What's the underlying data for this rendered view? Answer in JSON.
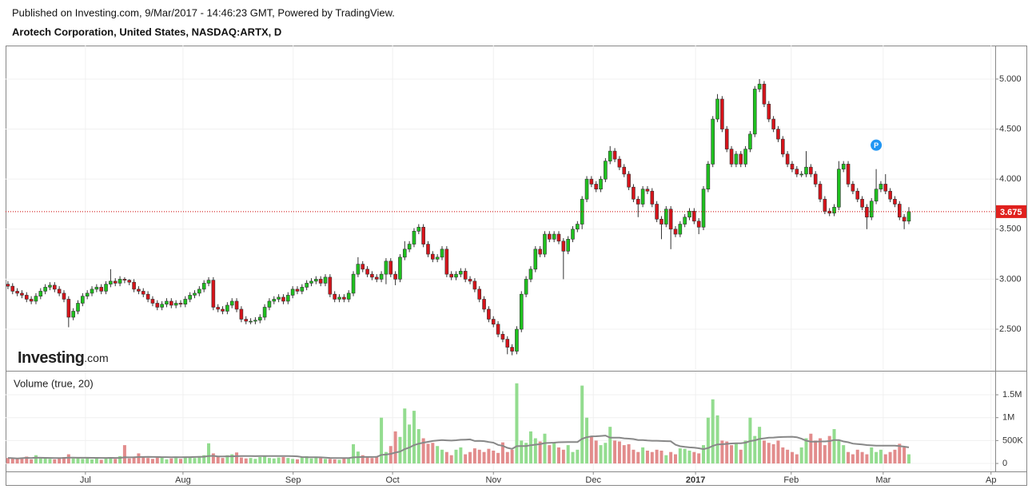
{
  "chart_data": {
    "type": "candlestick",
    "published": "Published on Investing.com, 9/Mar/2017 - 14:46:23 GMT, Powered by TradingView.",
    "title": "Arotech Corporation, United States, NASDAQ:ARTX, D",
    "logo": [
      "Investing",
      ".com"
    ],
    "volume_label": "Volume (true, 20)",
    "annotation": {
      "label": "P",
      "x": 186
    },
    "up_color": "#1fc11f",
    "down_color": "#d6141b",
    "volume_up_color": "#93dc8f",
    "volume_down_color": "#e28c8c",
    "xlim": [
      -0.5,
      211.5
    ],
    "xticks": [
      {
        "value": 16.6,
        "label": "Jul"
      },
      {
        "value": 37.5,
        "label": "Aug"
      },
      {
        "value": 61.1,
        "label": "Sep"
      },
      {
        "value": 82.4,
        "label": "Oct"
      },
      {
        "value": 104,
        "label": "Nov"
      },
      {
        "value": 125.4,
        "label": "Dec"
      },
      {
        "value": 147.3,
        "label": "2017"
      },
      {
        "value": 167.8,
        "label": "Feb"
      },
      {
        "value": 187.5,
        "label": "Mar"
      },
      {
        "value": 210.6,
        "label": "Ap"
      }
    ],
    "ylim": [
      2.093,
      5.335
    ],
    "yticks": [
      {
        "value": 2.5,
        "label": "2.500"
      },
      {
        "value": 3,
        "label": "3.000"
      },
      {
        "value": 3.5,
        "label": "3.500"
      },
      {
        "value": 4,
        "label": "4.000"
      },
      {
        "value": 4.5,
        "label": "4.500"
      },
      {
        "value": 5,
        "label": "5.000"
      }
    ],
    "volume_ylim": [
      -174000,
      2007000
    ],
    "volume_ticks": [
      0,
      {
        "value": 500000,
        "label": "500K"
      },
      {
        "value": 1000000,
        "label": "1M"
      },
      {
        "value": 1500000,
        "label": "1.5M"
      }
    ],
    "open": [
      2.95,
      2.93,
      2.88,
      2.86,
      2.84,
      2.8,
      2.78,
      2.83,
      2.88,
      2.92,
      2.94,
      2.9,
      2.86,
      2.8,
      2.62,
      2.68,
      2.76,
      2.83,
      2.86,
      2.9,
      2.92,
      2.88,
      2.95,
      2.98,
      2.96,
      3.0,
      2.99,
      2.97,
      2.9,
      2.88,
      2.85,
      2.8,
      2.76,
      2.72,
      2.75,
      2.78,
      2.74,
      2.76,
      2.75,
      2.8,
      2.84,
      2.86,
      2.9,
      2.96,
      2.99,
      2.72,
      2.7,
      2.68,
      2.74,
      2.78,
      2.7,
      2.6,
      2.58,
      2.58,
      2.59,
      2.62,
      2.72,
      2.78,
      2.8,
      2.82,
      2.78,
      2.84,
      2.9,
      2.88,
      2.92,
      2.96,
      2.98,
      3.0,
      2.96,
      3.02,
      2.85,
      2.8,
      2.82,
      2.8,
      2.86,
      3.05,
      3.15,
      3.1,
      3.05,
      3.02,
      3.0,
      3.05,
      3.18,
      3.05,
      3.0,
      3.22,
      3.3,
      3.35,
      3.48,
      3.52,
      3.35,
      3.25,
      3.2,
      3.22,
      3.3,
      3.05,
      3.02,
      3.05,
      3.08,
      3.0,
      2.98,
      2.9,
      2.8,
      2.7,
      2.6,
      2.55,
      2.45,
      2.4,
      2.32,
      2.28,
      2.5,
      2.85,
      3.0,
      3.1,
      3.3,
      3.25,
      3.45,
      3.4,
      3.45,
      3.38,
      3.28,
      3.4,
      3.5,
      3.55,
      3.8,
      4.0,
      3.95,
      3.9,
      4.0,
      4.18,
      4.28,
      4.2,
      4.12,
      4.05,
      3.92,
      3.8,
      3.75,
      3.9,
      3.88,
      3.75,
      3.6,
      3.55,
      3.7,
      3.5,
      3.45,
      3.55,
      3.62,
      3.68,
      3.58,
      3.52,
      3.9,
      4.15,
      4.6,
      4.8,
      4.5,
      4.3,
      4.15,
      4.25,
      4.15,
      4.3,
      4.45,
      4.9,
      4.95,
      4.75,
      4.6,
      4.5,
      4.4,
      4.25,
      4.15,
      4.1,
      4.05,
      4.05,
      4.12,
      4.05,
      3.95,
      3.8,
      3.68,
      3.66,
      3.72,
      4.1,
      4.15,
      3.95,
      3.88,
      3.8,
      3.72,
      3.62,
      3.78,
      3.9,
      3.95,
      3.88,
      3.8,
      3.75,
      3.62,
      3.58
    ],
    "high": [
      2.98,
      2.96,
      2.91,
      2.89,
      2.87,
      2.83,
      2.86,
      2.91,
      2.95,
      2.97,
      2.97,
      2.93,
      2.89,
      2.83,
      2.71,
      2.79,
      2.86,
      2.89,
      2.93,
      2.95,
      2.95,
      2.98,
      3.1,
      3.01,
      3.03,
      3.02,
      3.0,
      3.0,
      2.93,
      2.91,
      2.88,
      2.83,
      2.79,
      2.78,
      2.81,
      2.81,
      2.79,
      2.79,
      2.83,
      2.87,
      2.89,
      2.93,
      2.99,
      3.02,
      3.02,
      2.75,
      2.73,
      2.77,
      2.81,
      2.81,
      2.73,
      2.63,
      2.61,
      2.62,
      2.65,
      2.75,
      2.81,
      2.83,
      2.85,
      2.85,
      2.87,
      2.93,
      2.93,
      2.95,
      2.99,
      3.01,
      3.03,
      3.03,
      3.05,
      3.05,
      2.88,
      2.85,
      2.85,
      2.89,
      3.08,
      3.22,
      3.18,
      3.13,
      3.08,
      3.05,
      3.08,
      3.21,
      3.21,
      3.08,
      3.25,
      3.38,
      3.38,
      3.51,
      3.55,
      3.55,
      3.38,
      3.28,
      3.25,
      3.33,
      3.33,
      3.08,
      3.08,
      3.11,
      3.11,
      3.03,
      3.01,
      2.93,
      2.83,
      2.73,
      2.63,
      2.58,
      2.48,
      2.43,
      2.35,
      2.53,
      2.88,
      3.03,
      3.13,
      3.33,
      3.33,
      3.48,
      3.48,
      3.48,
      3.48,
      3.41,
      3.43,
      3.53,
      3.58,
      3.83,
      4.03,
      4.03,
      3.98,
      4.03,
      4.21,
      4.33,
      4.31,
      4.23,
      4.15,
      4.08,
      3.95,
      3.83,
      3.93,
      3.93,
      3.91,
      3.78,
      3.63,
      3.73,
      3.73,
      3.53,
      3.58,
      3.65,
      3.71,
      3.71,
      3.61,
      3.93,
      4.18,
      4.63,
      4.85,
      4.83,
      4.53,
      4.33,
      4.28,
      4.28,
      4.33,
      4.48,
      4.93,
      5.0,
      4.98,
      4.78,
      4.63,
      4.53,
      4.43,
      4.28,
      4.18,
      4.13,
      4.08,
      4.28,
      4.15,
      4.08,
      3.98,
      3.83,
      3.71,
      3.75,
      4.18,
      4.18,
      4.18,
      3.98,
      3.91,
      3.83,
      3.75,
      3.81,
      4.1,
      3.98,
      4.05,
      3.91,
      3.83,
      3.78,
      3.65,
      3.72
    ],
    "low": [
      2.9,
      2.85,
      2.83,
      2.81,
      2.77,
      2.75,
      2.75,
      2.8,
      2.85,
      2.89,
      2.87,
      2.83,
      2.77,
      2.52,
      2.59,
      2.65,
      2.73,
      2.8,
      2.83,
      2.87,
      2.85,
      2.85,
      2.92,
      2.93,
      2.93,
      2.96,
      2.94,
      2.87,
      2.85,
      2.82,
      2.77,
      2.73,
      2.69,
      2.69,
      2.72,
      2.71,
      2.71,
      2.72,
      2.72,
      2.77,
      2.81,
      2.83,
      2.87,
      2.93,
      2.69,
      2.67,
      2.65,
      2.65,
      2.71,
      2.67,
      2.57,
      2.55,
      2.55,
      2.55,
      2.56,
      2.59,
      2.69,
      2.75,
      2.77,
      2.75,
      2.75,
      2.81,
      2.85,
      2.85,
      2.89,
      2.93,
      2.95,
      2.93,
      2.93,
      2.82,
      2.77,
      2.77,
      2.77,
      2.77,
      2.83,
      3.02,
      3.07,
      3.02,
      2.99,
      2.97,
      2.97,
      2.95,
      3.02,
      2.94,
      2.97,
      3.19,
      3.27,
      3.32,
      3.45,
      3.32,
      3.22,
      3.17,
      3.17,
      3.19,
      3.02,
      2.99,
      2.99,
      3.02,
      2.97,
      2.95,
      2.87,
      2.77,
      2.67,
      2.57,
      2.52,
      2.42,
      2.37,
      2.25,
      2.24,
      2.25,
      2.47,
      2.82,
      2.97,
      3.07,
      3.22,
      3.22,
      3.37,
      3.37,
      3.35,
      3.0,
      3.25,
      3.37,
      3.47,
      3.5,
      3.77,
      3.92,
      3.87,
      3.87,
      3.97,
      4.15,
      4.17,
      4.09,
      4.02,
      3.89,
      3.77,
      3.62,
      3.72,
      3.85,
      3.72,
      3.57,
      3.4,
      3.52,
      3.3,
      3.42,
      3.42,
      3.52,
      3.59,
      3.55,
      3.45,
      3.49,
      3.87,
      4.12,
      4.57,
      4.47,
      4.27,
      4.12,
      4.12,
      4.12,
      4.12,
      4.27,
      4.42,
      4.87,
      4.72,
      4.57,
      4.47,
      4.37,
      4.22,
      4.12,
      4.07,
      4.02,
      4.02,
      4.02,
      4.02,
      3.92,
      3.77,
      3.65,
      3.63,
      3.63,
      3.69,
      4.07,
      3.92,
      3.85,
      3.77,
      3.69,
      3.5,
      3.59,
      3.75,
      3.87,
      3.85,
      3.77,
      3.72,
      3.59,
      3.5,
      3.55
    ],
    "close": [
      2.93,
      2.88,
      2.86,
      2.84,
      2.8,
      2.78,
      2.83,
      2.88,
      2.92,
      2.94,
      2.9,
      2.86,
      2.8,
      2.62,
      2.68,
      2.76,
      2.83,
      2.86,
      2.9,
      2.92,
      2.88,
      2.95,
      2.98,
      2.96,
      3.0,
      2.99,
      2.97,
      2.9,
      2.88,
      2.85,
      2.8,
      2.76,
      2.72,
      2.75,
      2.78,
      2.74,
      2.76,
      2.75,
      2.8,
      2.84,
      2.86,
      2.9,
      2.96,
      2.99,
      2.72,
      2.7,
      2.68,
      2.74,
      2.78,
      2.7,
      2.6,
      2.58,
      2.58,
      2.59,
      2.62,
      2.72,
      2.78,
      2.8,
      2.82,
      2.78,
      2.84,
      2.9,
      2.88,
      2.92,
      2.96,
      2.98,
      3.0,
      2.96,
      3.02,
      2.85,
      2.8,
      2.82,
      2.8,
      2.86,
      3.05,
      3.15,
      3.1,
      3.05,
      3.02,
      3.0,
      3.05,
      3.18,
      3.05,
      3.0,
      3.22,
      3.3,
      3.35,
      3.48,
      3.52,
      3.35,
      3.25,
      3.2,
      3.22,
      3.3,
      3.05,
      3.02,
      3.05,
      3.08,
      3.0,
      2.98,
      2.9,
      2.8,
      2.7,
      2.6,
      2.55,
      2.45,
      2.4,
      2.32,
      2.28,
      2.5,
      2.85,
      3.0,
      3.1,
      3.3,
      3.25,
      3.45,
      3.4,
      3.45,
      3.38,
      3.28,
      3.4,
      3.5,
      3.55,
      3.8,
      4.0,
      3.95,
      3.9,
      4.0,
      4.18,
      4.28,
      4.2,
      4.12,
      4.05,
      3.92,
      3.8,
      3.75,
      3.9,
      3.88,
      3.75,
      3.6,
      3.55,
      3.7,
      3.5,
      3.45,
      3.55,
      3.62,
      3.68,
      3.58,
      3.52,
      3.9,
      4.15,
      4.6,
      4.8,
      4.5,
      4.3,
      4.15,
      4.25,
      4.15,
      4.3,
      4.45,
      4.9,
      4.95,
      4.75,
      4.6,
      4.5,
      4.4,
      4.25,
      4.15,
      4.1,
      4.05,
      4.05,
      4.12,
      4.05,
      3.95,
      3.8,
      3.68,
      3.66,
      3.72,
      4.1,
      4.15,
      3.95,
      3.88,
      3.8,
      3.72,
      3.62,
      3.78,
      3.9,
      3.95,
      3.88,
      3.8,
      3.75,
      3.62,
      3.58,
      3.675
    ],
    "volume": [
      120000,
      110000,
      100000,
      130000,
      150000,
      90000,
      180000,
      110000,
      120000,
      100000,
      90000,
      130000,
      140000,
      200000,
      110000,
      120000,
      100000,
      130000,
      90000,
      140000,
      80000,
      110000,
      120000,
      100000,
      160000,
      400000,
      110000,
      150000,
      220000,
      140000,
      120000,
      100000,
      130000,
      140000,
      90000,
      110000,
      120000,
      100000,
      130000,
      150000,
      120000,
      160000,
      180000,
      440000,
      220000,
      150000,
      120000,
      180000,
      200000,
      240000,
      130000,
      110000,
      120000,
      100000,
      140000,
      150000,
      120000,
      110000,
      130000,
      140000,
      120000,
      100000,
      90000,
      130000,
      160000,
      110000,
      150000,
      120000,
      100000,
      100000,
      90000,
      80000,
      110000,
      120000,
      420000,
      260000,
      180000,
      140000,
      120000,
      160000,
      1000000,
      250000,
      380000,
      700000,
      580000,
      1200000,
      850000,
      1150000,
      750000,
      550000,
      430000,
      450000,
      380000,
      300000,
      250000,
      180000,
      300000,
      350000,
      200000,
      250000,
      330000,
      300000,
      250000,
      320000,
      280000,
      230000,
      460000,
      250000,
      300000,
      1750000,
      500000,
      450000,
      700000,
      550000,
      480000,
      650000,
      400000,
      450000,
      350000,
      300000,
      400000,
      250000,
      300000,
      1700000,
      1000000,
      600000,
      500000,
      400000,
      450000,
      800000,
      500000,
      480000,
      400000,
      420000,
      300000,
      250000,
      350000,
      280000,
      250000,
      300000,
      280000,
      180000,
      250000,
      200000,
      330000,
      320000,
      280000,
      250000,
      220000,
      400000,
      1000000,
      1400000,
      1050000,
      500000,
      480000,
      400000,
      450000,
      300000,
      500000,
      1000000,
      600000,
      800000,
      500000,
      450000,
      420000,
      500000,
      350000,
      300000,
      250000,
      200000,
      350000,
      550000,
      650000,
      500000,
      550000,
      400000,
      600000,
      750000,
      500000,
      400000,
      250000,
      200000,
      300000,
      250000,
      200000,
      350000,
      250000,
      300000,
      200000,
      250000,
      300000,
      430000,
      350000,
      200000
    ]
  }
}
